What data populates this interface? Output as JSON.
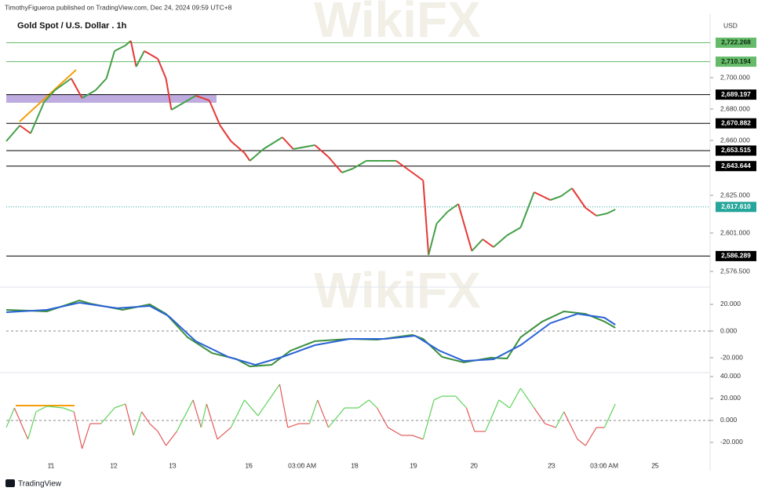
{
  "header": {
    "publisher": "TimothyFigueroa published on TradingView.com, Dec 24, 2024 09:59 UTC+8"
  },
  "footer": {
    "brand": "TradingView"
  },
  "watermark": "WikiFX",
  "chart_data": [
    {
      "type": "line",
      "title": "Gold Spot / U.S. Dollar . 1h",
      "currency": "USD",
      "xlim": [
        0,
        260
      ],
      "ylim": [
        2569.5,
        2739.5
      ],
      "yticks": [
        {
          "value": 2700,
          "label": "2,700.000"
        },
        {
          "value": 2680,
          "label": "2,680.000"
        },
        {
          "value": 2660,
          "label": "2,660.000"
        },
        {
          "value": 2625,
          "label": "2,625.000"
        },
        {
          "value": 2601,
          "label": "2,601.000"
        },
        {
          "value": 2576.5,
          "label": "2,576.500"
        }
      ],
      "levels": [
        {
          "value": 2722.268,
          "label": "2,722.268",
          "color": "#66bb6a",
          "text_color": "#0d2b0e"
        },
        {
          "value": 2710.194,
          "label": "2,710.194",
          "color": "#66bb6a",
          "text_color": "#0d2b0e"
        },
        {
          "value": 2689.197,
          "label": "2,689.197",
          "color": "#000000",
          "text_color": "#ffffff"
        },
        {
          "value": 2670.882,
          "label": "2,670.882",
          "color": "#000000",
          "text_color": "#ffffff"
        },
        {
          "value": 2653.515,
          "label": "2,653.515",
          "color": "#000000",
          "text_color": "#ffffff"
        },
        {
          "value": 2643.644,
          "label": "2,643.644",
          "color": "#000000",
          "text_color": "#ffffff"
        },
        {
          "value": 2586.289,
          "label": "2,586.289",
          "color": "#000000",
          "text_color": "#ffffff"
        }
      ],
      "last_price": {
        "value": 2617.61,
        "label": "2,617.610",
        "color": "#26a69a"
      },
      "series": [
        {
          "up_color": "#43a047",
          "down_color": "#e53935",
          "x": [
            0,
            5,
            9,
            14,
            18,
            24,
            28,
            33,
            37,
            40,
            44,
            46,
            48,
            51,
            56,
            59,
            61,
            66,
            70,
            75,
            79,
            83,
            88,
            90,
            95,
            102,
            106,
            114,
            119,
            124,
            128,
            133,
            138,
            144,
            148,
            154,
            156,
            159,
            163,
            167,
            172,
            176,
            180,
            185,
            190,
            195,
            201,
            205,
            209,
            214,
            218,
            222,
            225
          ],
          "values": [
            2659.5,
            2669.5,
            2664.5,
            2684.5,
            2692,
            2699.5,
            2687,
            2692,
            2699.5,
            2717,
            2720.5,
            2723.5,
            2707,
            2717,
            2712,
            2699.5,
            2679.5,
            2684.5,
            2688.5,
            2685.5,
            2669.5,
            2659.5,
            2652,
            2647,
            2654.5,
            2662,
            2654.5,
            2657,
            2649.5,
            2639.5,
            2642,
            2647,
            2647,
            2647,
            2642,
            2634.5,
            2587,
            2607,
            2614.5,
            2619.5,
            2589.5,
            2597,
            2592,
            2599.5,
            2604.5,
            2627,
            2622,
            2624.5,
            2629.5,
            2617,
            2612,
            2613.5,
            2616
          ]
        }
      ]
    },
    {
      "type": "line",
      "xlim": [
        0,
        260
      ],
      "ylim": [
        -29.4,
        29.4
      ],
      "yticks": [
        {
          "value": 20,
          "label": "20.000"
        },
        {
          "value": 0,
          "label": "0.000"
        },
        {
          "value": -20,
          "label": "-20.000"
        }
      ],
      "series": [
        {
          "color": "#3b8f3e",
          "x": [
            0,
            8,
            15,
            27,
            31,
            43,
            53,
            59,
            67,
            76,
            85,
            90,
            98,
            105,
            114,
            127,
            137,
            150,
            154,
            161,
            169,
            179,
            185,
            190,
            198,
            206,
            214,
            221,
            225
          ],
          "values": [
            15.9,
            15.3,
            14.7,
            22.9,
            20.6,
            15.9,
            20,
            12.9,
            -4.7,
            -16.5,
            -21,
            -26.5,
            -25.3,
            -14.7,
            -7.6,
            -5.9,
            -6.5,
            -2.9,
            -5.9,
            -19.4,
            -23.5,
            -20,
            -20.6,
            -4.7,
            7.1,
            14.7,
            12.9,
            7.1,
            2.4
          ]
        },
        {
          "color": "#2a62d6",
          "x": [
            0,
            15,
            27,
            41,
            53,
            60,
            70,
            82,
            92,
            102,
            114,
            127,
            140,
            151,
            160,
            169,
            180,
            190,
            201,
            211,
            221,
            225
          ],
          "values": [
            14.1,
            15.9,
            21.2,
            17.1,
            18.8,
            11.2,
            -7.6,
            -19.4,
            -25.3,
            -19.4,
            -10.6,
            -5.9,
            -5.9,
            -3.5,
            -14.7,
            -22.4,
            -21.2,
            -10.6,
            5.9,
            12.9,
            10,
            4.7
          ]
        }
      ]
    },
    {
      "type": "line",
      "xlim": [
        0,
        260
      ],
      "ylim": [
        -38.6,
        41.4
      ],
      "yticks": [
        {
          "value": 40,
          "label": "40.000"
        },
        {
          "value": 20,
          "label": "20.000"
        },
        {
          "value": 0,
          "label": "0.000"
        },
        {
          "value": -20,
          "label": "-20.000"
        }
      ],
      "xticks": [
        {
          "value": 16.5,
          "label": "11"
        },
        {
          "value": 39.7,
          "label": "12"
        },
        {
          "value": 61.4,
          "label": "13"
        },
        {
          "value": 89.6,
          "label": "16"
        },
        {
          "value": 109.3,
          "label": "03:00 AM"
        },
        {
          "value": 128.7,
          "label": "18"
        },
        {
          "value": 150.4,
          "label": "19"
        },
        {
          "value": 172.8,
          "label": "20"
        },
        {
          "value": 201.4,
          "label": "23"
        },
        {
          "value": 220.9,
          "label": "03:00 AM"
        },
        {
          "value": 239.7,
          "label": "25"
        }
      ],
      "series": [
        {
          "up_color": "#5fd35a",
          "down_color": "#e35a5a",
          "x": [
            0,
            3,
            8,
            11,
            15,
            21,
            25,
            28,
            31,
            35,
            40,
            44,
            47,
            50,
            53,
            56,
            59,
            63,
            69,
            72,
            74,
            78,
            83,
            88,
            93,
            98,
            101,
            104,
            108,
            112,
            115,
            119,
            125,
            130,
            134,
            137,
            141,
            146,
            150,
            154,
            158,
            161,
            166,
            170,
            173,
            177,
            182,
            186,
            190,
            195,
            199,
            203,
            206,
            211,
            214,
            218,
            221,
            225
          ],
          "values": [
            -6.4,
            11.4,
            -17.1,
            7.9,
            12.9,
            11.4,
            7.9,
            -25.7,
            -2.9,
            -2.9,
            11.4,
            15,
            -13.6,
            7.9,
            -2.9,
            -10,
            -22.9,
            -10,
            18.6,
            -6.4,
            15,
            -17.1,
            -6.4,
            18.6,
            4.3,
            22.1,
            32.9,
            -6.4,
            -2.9,
            -2.9,
            18.6,
            -6.4,
            11.4,
            11.4,
            18.6,
            11.4,
            -6.4,
            -13.6,
            -13.6,
            -17.1,
            18.6,
            22.1,
            22.1,
            11.4,
            -10,
            -10,
            18.6,
            11.4,
            29.3,
            11.4,
            -2.9,
            -6.4,
            7.9,
            -17.1,
            -22.9,
            -6.4,
            -6.4,
            15
          ]
        }
      ]
    }
  ]
}
